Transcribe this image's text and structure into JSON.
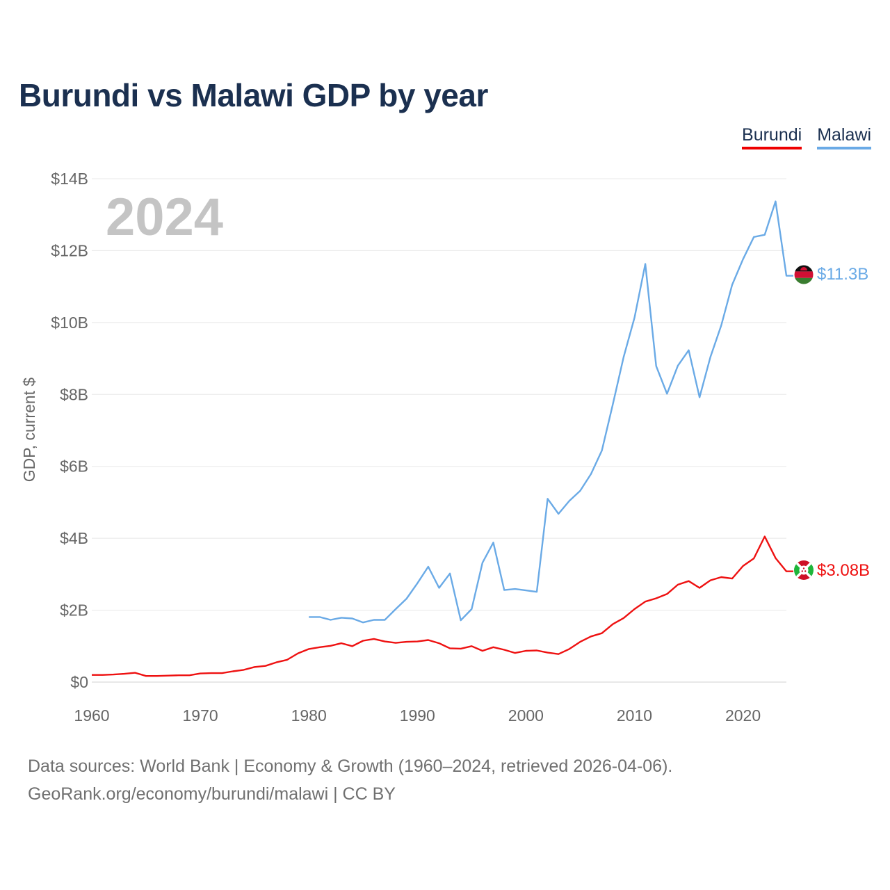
{
  "chart_data": {
    "type": "line",
    "title": "Burundi vs Malawi GDP by year",
    "ylabel": "GDP, current $",
    "xlabel": "",
    "xlim": [
      1960,
      2024
    ],
    "ylim": [
      0,
      14
    ],
    "y_unit": "billions of current US$",
    "x_ticks": [
      1960,
      1970,
      1980,
      1990,
      2000,
      2010,
      2020
    ],
    "x_tick_labels": [
      "1960",
      "1970",
      "1980",
      "1990",
      "2000",
      "2010",
      "2020"
    ],
    "y_ticks": [
      0,
      2,
      4,
      6,
      8,
      10,
      12,
      14
    ],
    "y_tick_labels": [
      "$0",
      "$2B",
      "$4B",
      "$6B",
      "$8B",
      "$10B",
      "$12B",
      "$14B"
    ],
    "current_year": "2024",
    "grid": true,
    "legend_position": "top-right",
    "series": [
      {
        "name": "Burundi",
        "color": "#ee1111",
        "end_label": "$3.08B",
        "flag": "burundi-flag",
        "x": [
          1960,
          1961,
          1962,
          1963,
          1964,
          1965,
          1966,
          1967,
          1968,
          1969,
          1970,
          1971,
          1972,
          1973,
          1974,
          1975,
          1976,
          1977,
          1978,
          1979,
          1980,
          1981,
          1982,
          1983,
          1984,
          1985,
          1986,
          1987,
          1988,
          1989,
          1990,
          1991,
          1992,
          1993,
          1994,
          1995,
          1996,
          1997,
          1998,
          1999,
          2000,
          2001,
          2002,
          2003,
          2004,
          2005,
          2006,
          2007,
          2008,
          2009,
          2010,
          2011,
          2012,
          2013,
          2014,
          2015,
          2016,
          2017,
          2018,
          2019,
          2020,
          2021,
          2022,
          2023,
          2024
        ],
        "values": [
          0.2,
          0.2,
          0.21,
          0.23,
          0.26,
          0.17,
          0.17,
          0.18,
          0.19,
          0.19,
          0.24,
          0.25,
          0.25,
          0.3,
          0.34,
          0.42,
          0.45,
          0.55,
          0.62,
          0.8,
          0.92,
          0.97,
          1.01,
          1.08,
          1.0,
          1.15,
          1.2,
          1.13,
          1.09,
          1.12,
          1.13,
          1.17,
          1.08,
          0.94,
          0.93,
          1.0,
          0.87,
          0.97,
          0.9,
          0.81,
          0.87,
          0.88,
          0.82,
          0.78,
          0.92,
          1.12,
          1.27,
          1.36,
          1.61,
          1.78,
          2.03,
          2.24,
          2.33,
          2.45,
          2.71,
          2.81,
          2.62,
          2.83,
          2.92,
          2.88,
          3.23,
          3.44,
          4.05,
          3.45,
          3.08
        ]
      },
      {
        "name": "Malawi",
        "color": "#6aaae6",
        "end_label": "$11.3B",
        "flag": "malawi-flag",
        "x": [
          1980,
          1981,
          1982,
          1983,
          1984,
          1985,
          1986,
          1987,
          1988,
          1989,
          1990,
          1991,
          1992,
          1993,
          1994,
          1995,
          1996,
          1997,
          1998,
          1999,
          2000,
          2001,
          2002,
          2003,
          2004,
          2005,
          2006,
          2007,
          2008,
          2009,
          2010,
          2011,
          2012,
          2013,
          2014,
          2015,
          2016,
          2017,
          2018,
          2019,
          2020,
          2021,
          2022,
          2023,
          2024
        ],
        "values": [
          1.81,
          1.81,
          1.73,
          1.79,
          1.77,
          1.66,
          1.73,
          1.73,
          2.03,
          2.32,
          2.75,
          3.21,
          2.62,
          3.02,
          1.72,
          2.03,
          3.32,
          3.88,
          2.56,
          2.59,
          2.55,
          2.51,
          5.1,
          4.68,
          5.04,
          5.32,
          5.79,
          6.44,
          7.72,
          9.04,
          10.13,
          11.63,
          8.79,
          8.02,
          8.8,
          9.23,
          7.92,
          9.04,
          9.92,
          11.05,
          11.76,
          12.38,
          12.44,
          13.37,
          11.3
        ]
      }
    ]
  },
  "footer": {
    "source_line": "Data sources: World Bank | Economy & Growth (1960–2024, retrieved 2026-04-06).",
    "credit_line": "GeoRank.org/economy/burundi/malawi | CC BY"
  }
}
